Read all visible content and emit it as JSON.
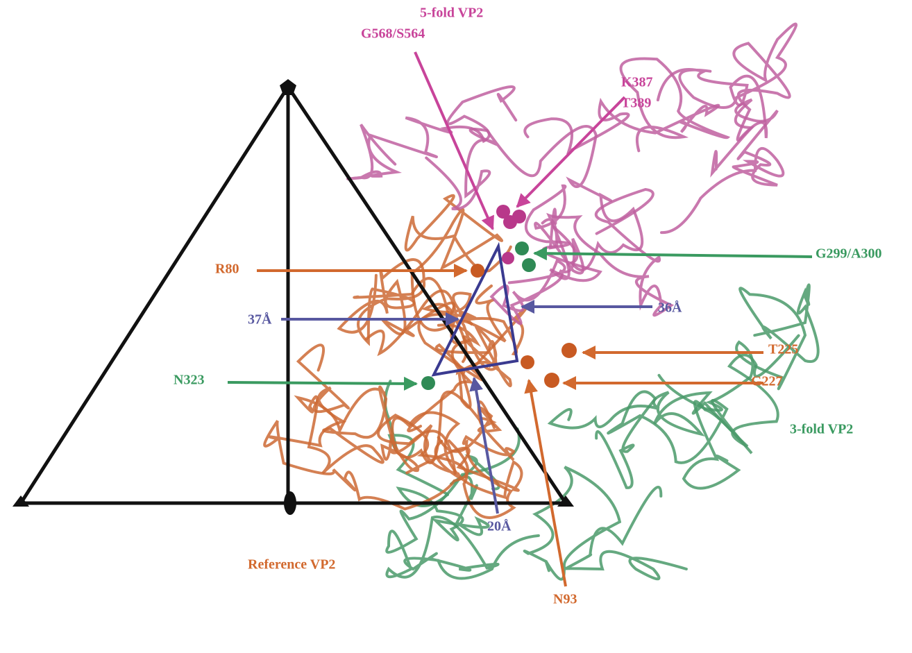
{
  "labels": {
    "five_fold": "5-fold VP2",
    "three_fold": "3-fold VP2",
    "reference": "Reference VP2",
    "g568_s564": "G568/S564",
    "k387": "K387",
    "t389": "T389",
    "g299_a300": "G299/A300",
    "r80": "R80",
    "t225": "T225",
    "g227": "G227",
    "n323": "N323",
    "n93": "N93",
    "d37": "37Å",
    "d36": "36Å",
    "d20": "20Å"
  }
}
